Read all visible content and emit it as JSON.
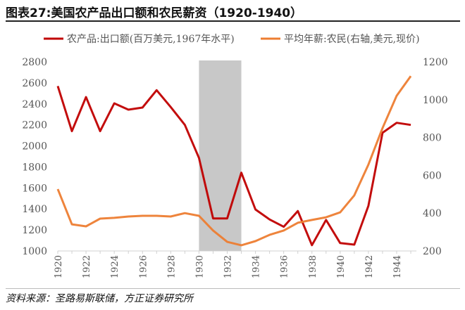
{
  "title": "图表27:美国农产品出口额和农民薪资（1920-1940）",
  "source": "资料来源：圣路易斯联储，方正证券研究所",
  "chart_data": {
    "type": "line",
    "title": "图表27:美国农产品出口额和农民薪资（1920-1940）",
    "x": [
      1920,
      1921,
      1922,
      1923,
      1924,
      1925,
      1926,
      1927,
      1928,
      1929,
      1930,
      1931,
      1932,
      1933,
      1934,
      1935,
      1936,
      1937,
      1938,
      1939,
      1940,
      1941,
      1942,
      1943,
      1944,
      1945
    ],
    "xticks": [
      "1920",
      "1922",
      "1924",
      "1926",
      "1928",
      "1930",
      "1932",
      "1934",
      "1936",
      "1938",
      "1940",
      "1942",
      "1944"
    ],
    "series": [
      {
        "name": "农产品:出口额(百万美元,1967年水平)",
        "axis": "left",
        "color": "#C00000",
        "values": [
          2570,
          2140,
          2465,
          2140,
          2405,
          2345,
          2365,
          2530,
          2370,
          2200,
          1885,
          1310,
          1310,
          1745,
          1395,
          1300,
          1230,
          1380,
          1055,
          1295,
          1075,
          1060,
          1430,
          2125,
          2220,
          2200
        ]
      },
      {
        "name": "平均年薪:农民(右轴,美元,现价)",
        "axis": "right",
        "color": "#ED7D31",
        "values": [
          527,
          341,
          330,
          371,
          375,
          382,
          386,
          386,
          382,
          400,
          386,
          308,
          248,
          230,
          252,
          285,
          308,
          349,
          364,
          378,
          404,
          494,
          657,
          850,
          1021,
          1125
        ]
      }
    ],
    "yleft": {
      "min": 1000,
      "max": 2800,
      "ticks": [
        "1000",
        "1200",
        "1400",
        "1600",
        "1800",
        "2000",
        "2200",
        "2400",
        "2600",
        "2800"
      ]
    },
    "yright": {
      "min": 200,
      "max": 1200,
      "ticks": [
        "200",
        "400",
        "600",
        "800",
        "1000",
        "1200"
      ]
    },
    "shaded_range": [
      1930,
      1933
    ],
    "shade_color": "#C8C8C8",
    "legend_position": "top"
  }
}
